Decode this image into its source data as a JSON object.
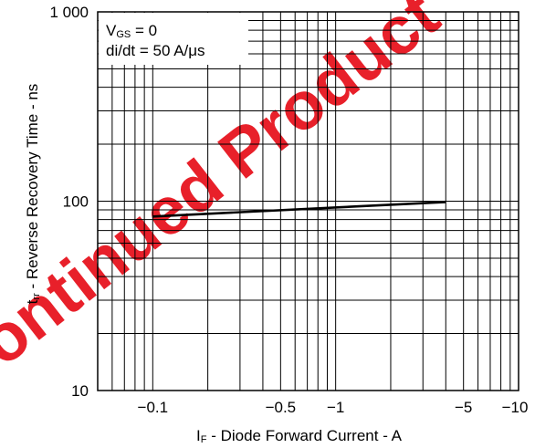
{
  "watermark": "Discontinued Product",
  "chart_data": {
    "type": "line",
    "title": "",
    "xlabel": {
      "main": "I",
      "sub": "F",
      "rest": " - Diode Forward Current - A"
    },
    "ylabel": {
      "main": "t",
      "sub": "rr",
      "rest": " - Reverse Recovery Time - ns"
    },
    "x_scale": "log",
    "y_scale": "log",
    "x_axis_shows_negative_current": true,
    "xlim": [
      -0.05,
      -10
    ],
    "ylim": [
      10,
      1000
    ],
    "grid": true,
    "xticks": [
      {
        "value": -0.1,
        "label": "−0.1"
      },
      {
        "value": -0.5,
        "label": "−0.5"
      },
      {
        "value": -1,
        "label": "−1"
      },
      {
        "value": -5,
        "label": "−5"
      },
      {
        "value": -10,
        "label": "−10"
      }
    ],
    "yticks": [
      {
        "value": 10,
        "label": "10"
      },
      {
        "value": 100,
        "label": "100"
      },
      {
        "value": 1000,
        "label": "1 000"
      }
    ],
    "annotations": [
      {
        "main": "V",
        "sub": "GS",
        "rest": " = 0"
      },
      {
        "main": "di/dt = 50 A/",
        "sub": "",
        "rest": "μs"
      }
    ],
    "series": [
      {
        "x": [
          -0.1,
          -4
        ],
        "y": [
          83,
          99
        ]
      }
    ]
  }
}
